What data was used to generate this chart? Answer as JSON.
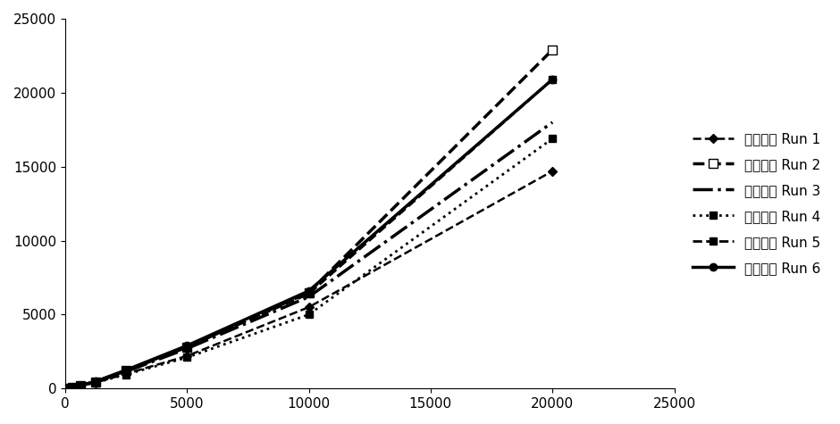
{
  "x_values": [
    0,
    313,
    625,
    1250,
    2500,
    5000,
    10000,
    20000
  ],
  "runs": [
    {
      "label": "标准曲线 Run 1",
      "y": [
        0,
        80,
        180,
        400,
        1000,
        2200,
        5500,
        14700
      ],
      "linestyle": "--",
      "marker": "D",
      "markersize": 5,
      "linewidth": 1.8,
      "color": "#000000",
      "markerfacecolor": "#000000"
    },
    {
      "label": "标准曲线 Run 2",
      "y": [
        0,
        90,
        200,
        450,
        1200,
        2800,
        6500,
        22900
      ],
      "linestyle": "--",
      "marker": "s",
      "markersize": 7,
      "linewidth": 2.5,
      "color": "#000000",
      "markerfacecolor": "#ffffff"
    },
    {
      "label": "标准曲线 Run 3",
      "y": [
        0,
        90,
        200,
        450,
        1150,
        2700,
        6200,
        18000
      ],
      "linestyle": "-.",
      "marker": "None",
      "markersize": 5,
      "linewidth": 2.5,
      "color": "#000000",
      "markerfacecolor": "#000000"
    },
    {
      "label": "标准曲线 Run 4",
      "y": [
        0,
        80,
        180,
        400,
        950,
        2100,
        5000,
        16900
      ],
      "linestyle": ":",
      "marker": "s",
      "markersize": 6,
      "linewidth": 2.0,
      "color": "#000000",
      "markerfacecolor": "#000000"
    },
    {
      "label": "标准曲线 Run 5",
      "y": [
        0,
        90,
        200,
        460,
        1200,
        2800,
        6400,
        20900
      ],
      "linestyle": "--",
      "marker": "s",
      "markersize": 6,
      "linewidth": 2.0,
      "color": "#000000",
      "markerfacecolor": "#000000"
    },
    {
      "label": "标准曲线 Run 6",
      "y": [
        0,
        100,
        220,
        480,
        1250,
        2900,
        6600,
        20900
      ],
      "linestyle": "-",
      "marker": "o",
      "markersize": 6,
      "linewidth": 2.5,
      "color": "#000000",
      "markerfacecolor": "#000000"
    }
  ],
  "xlim": [
    0,
    25000
  ],
  "ylim": [
    0,
    25000
  ],
  "xticks": [
    0,
    5000,
    10000,
    15000,
    20000,
    25000
  ],
  "yticks": [
    0,
    5000,
    10000,
    15000,
    20000,
    25000
  ],
  "background_color": "#ffffff",
  "legend_fontsize": 11,
  "tick_fontsize": 11
}
